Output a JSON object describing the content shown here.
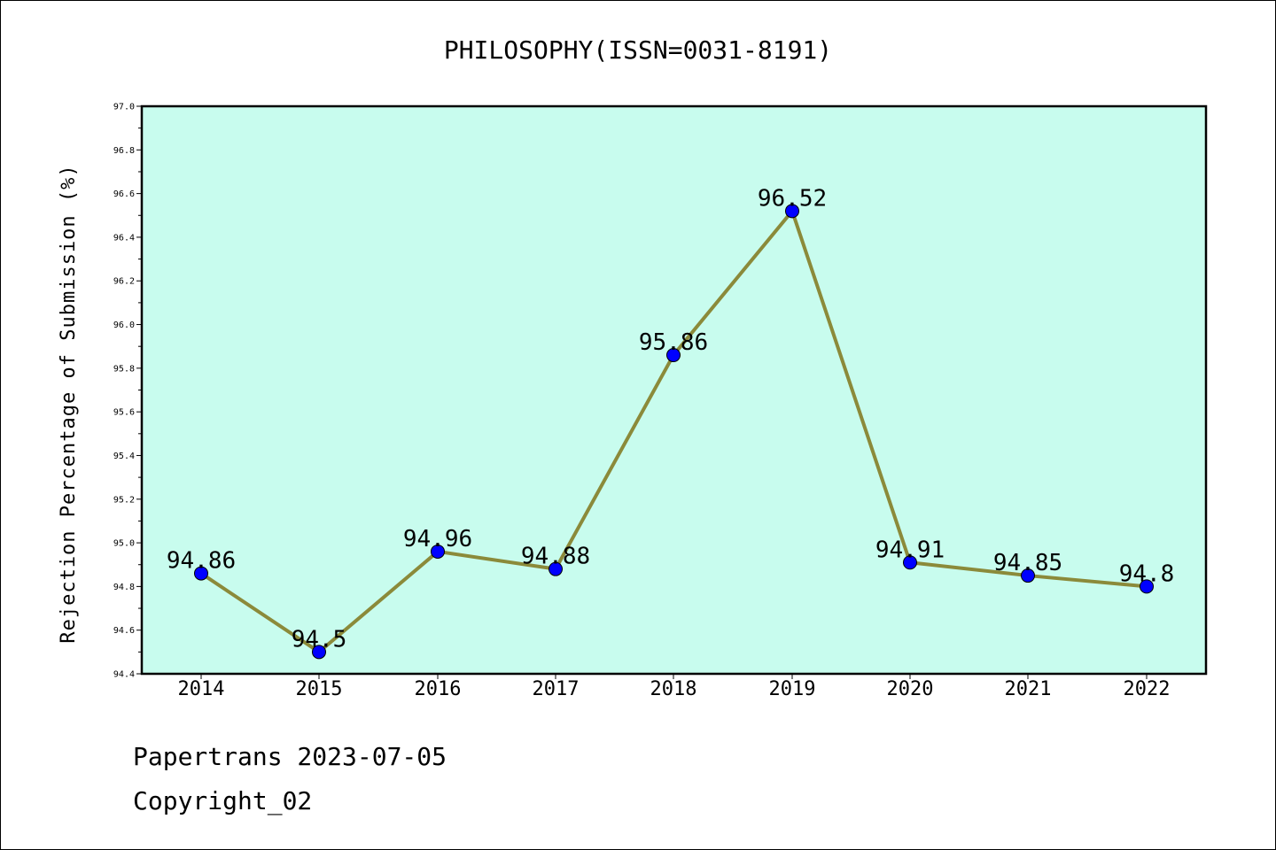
{
  "chart_data": {
    "type": "line",
    "title": "PHILOSOPHY(ISSN=0031-8191)",
    "xlabel": "",
    "ylabel": "Rejection Percentage of Submission (%)",
    "categories": [
      "2014",
      "2015",
      "2016",
      "2017",
      "2018",
      "2019",
      "2020",
      "2021",
      "2022"
    ],
    "values": [
      94.86,
      94.5,
      94.96,
      94.88,
      95.86,
      96.52,
      94.91,
      94.85,
      94.8
    ],
    "data_labels": [
      "94.86",
      "94.5",
      "94.96",
      "94.88",
      "95.86",
      "96.52",
      "94.91",
      "94.85",
      "94.8"
    ],
    "ylim": [
      94.4,
      97.0
    ],
    "yticks": [
      "94.4",
      "94.6",
      "94.8",
      "95.0",
      "95.2",
      "95.4",
      "95.6",
      "95.8",
      "96.0",
      "96.2",
      "96.4",
      "96.6",
      "96.8",
      "97.0"
    ],
    "grid": false,
    "colors": {
      "plot_background": "#c8fcee",
      "line": "#8b8a3a",
      "marker": "#0000ff"
    }
  },
  "footer": {
    "line1": "Papertrans 2023-07-05",
    "line2": "Copyright_02"
  }
}
